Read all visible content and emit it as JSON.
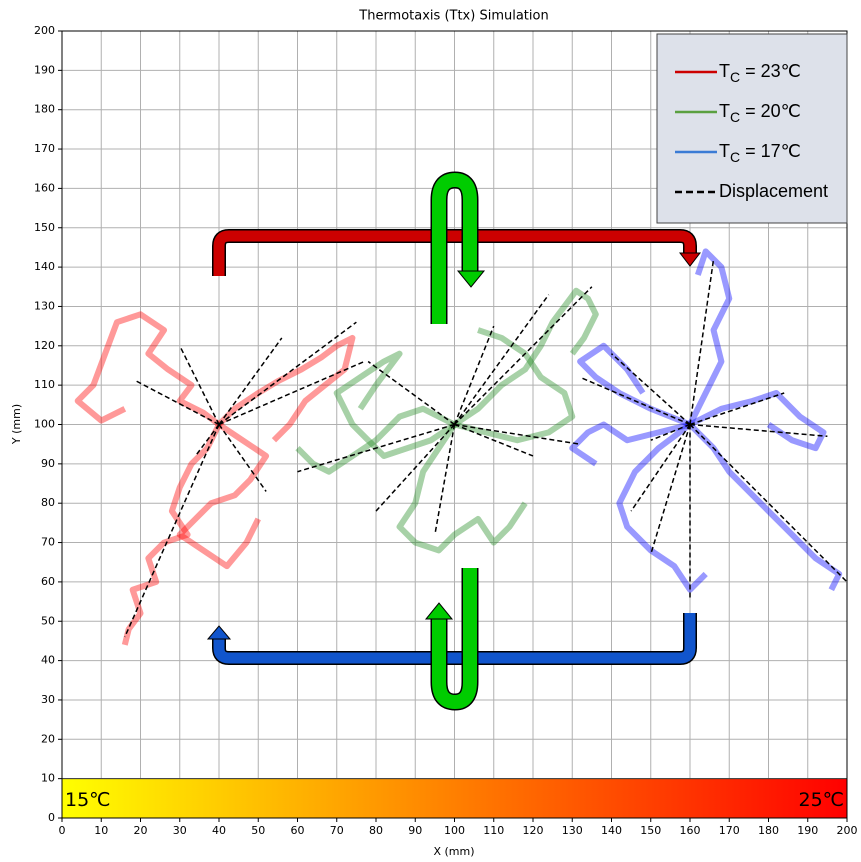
{
  "chart_data": {
    "type": "trajectory",
    "title": "Thermotaxis (Ttx) Simulation",
    "x_label": "X (mm)",
    "y_label": "Y (mm)",
    "xlim": [
      0,
      200
    ],
    "ylim": [
      0,
      200
    ],
    "xticks": [
      0,
      10,
      20,
      30,
      40,
      50,
      60,
      70,
      80,
      90,
      100,
      110,
      120,
      130,
      140,
      150,
      160,
      170,
      180,
      190,
      200
    ],
    "yticks": [
      0,
      10,
      20,
      30,
      40,
      50,
      60,
      70,
      80,
      90,
      100,
      110,
      120,
      130,
      140,
      150,
      160,
      170,
      180,
      190,
      200
    ],
    "grid": true,
    "legend": "upper right",
    "series": [
      {
        "name": "TC = 23℃",
        "color": "#ff0000",
        "legend_color": "#cc0000",
        "trajectories": [
          {
            "x": [
              40,
              36,
              30,
              33,
              27,
              22,
              26,
              20,
              14,
              8,
              4,
              10,
              16
            ],
            "y": [
              100,
              103,
              106,
              110,
              114,
              118,
              124,
              128,
              126,
              110,
              106,
              101,
              104
            ]
          },
          {
            "x": [
              40,
              44,
              50,
              55,
              61,
              66,
              70,
              74,
              72,
              67,
              62,
              58,
              54
            ],
            "y": [
              100,
              104,
              108,
              111,
              114,
              117,
              120,
              122,
              114,
              110,
              106,
              100,
              96
            ]
          },
          {
            "x": [
              40,
              37,
              33,
              30,
              28,
              32,
              26,
              22,
              24,
              18,
              20,
              17,
              16
            ],
            "y": [
              100,
              94,
              90,
              84,
              78,
              72,
              70,
              66,
              60,
              58,
              52,
              48,
              44
            ]
          },
          {
            "x": [
              40,
              46,
              52,
              48,
              44,
              38,
              34,
              30,
              36,
              42,
              47,
              50
            ],
            "y": [
              100,
              96,
              92,
              86,
              82,
              80,
              76,
              72,
              68,
              64,
              70,
              76
            ]
          }
        ]
      },
      {
        "name": "TC = 20℃",
        "color": "#228b22",
        "legend_color": "#5aa040",
        "trajectories": [
          {
            "x": [
              100,
              106,
              112,
              118,
              122,
              125,
              128,
              131,
              134,
              136,
              133,
              130
            ],
            "y": [
              100,
              104,
              110,
              114,
              120,
              126,
              130,
              134,
              132,
              128,
              122,
              118
            ]
          },
          {
            "x": [
              100,
              94,
              88,
              82,
              78,
              74,
              70,
              76,
              82,
              86,
              80,
              76
            ],
            "y": [
              100,
              96,
              94,
              92,
              96,
              100,
              108,
              112,
              116,
              118,
              110,
              104
            ]
          },
          {
            "x": [
              100,
              96,
              92,
              90,
              86,
              90,
              96,
              100,
              106,
              110,
              114,
              118
            ],
            "y": [
              100,
              94,
              88,
              80,
              74,
              70,
              68,
              72,
              76,
              70,
              74,
              80
            ]
          },
          {
            "x": [
              100,
              108,
              116,
              124,
              130,
              128,
              122,
              118,
              112,
              106
            ],
            "y": [
              100,
              98,
              96,
              98,
              102,
              108,
              112,
              118,
              122,
              124
            ]
          },
          {
            "x": [
              100,
              92,
              86,
              80,
              74,
              68,
              64,
              60
            ],
            "y": [
              100,
              104,
              102,
              96,
              92,
              88,
              90,
              94
            ]
          }
        ]
      },
      {
        "name": "TC = 17℃",
        "color": "#0000ff",
        "legend_color": "#3a7bd5",
        "trajectories": [
          {
            "x": [
              160,
              164,
              168,
              166,
              170,
              168,
              164,
              162
            ],
            "y": [
              100,
              108,
              116,
              124,
              132,
              140,
              144,
              138
            ]
          },
          {
            "x": [
              160,
              168,
              176,
              182,
              188,
              194,
              192,
              186,
              180
            ],
            "y": [
              100,
              104,
              106,
              108,
              102,
              98,
              94,
              96,
              100
            ]
          },
          {
            "x": [
              160,
              166,
              170,
              176,
              180,
              186,
              192,
              198,
              196
            ],
            "y": [
              100,
              94,
              88,
              82,
              78,
              72,
              66,
              62,
              58
            ]
          },
          {
            "x": [
              160,
              152,
              146,
              142,
              144,
              150,
              156,
              160,
              164
            ],
            "y": [
              100,
              94,
              88,
              80,
              74,
              68,
              64,
              58,
              62
            ]
          },
          {
            "x": [
              160,
              150,
              142,
              136,
              132,
              138,
              144,
              148
            ],
            "y": [
              100,
              104,
              108,
              112,
              116,
              120,
              114,
              108
            ]
          },
          {
            "x": [
              160,
              152,
              144,
              138,
              134,
              130,
              136
            ],
            "y": [
              100,
              98,
              96,
              100,
              98,
              94,
              90
            ]
          }
        ]
      }
    ],
    "displacement": {
      "name": "Displacement",
      "color": "#000000",
      "segments": [
        {
          "x": [
            40,
            16
          ],
          "y": [
            100,
            46
          ]
        },
        {
          "x": [
            40,
            52
          ],
          "y": [
            100,
            83
          ]
        },
        {
          "x": [
            40,
            30
          ],
          "y": [
            100,
            120
          ]
        },
        {
          "x": [
            40,
            19
          ],
          "y": [
            100,
            111
          ]
        },
        {
          "x": [
            40,
            75
          ],
          "y": [
            100,
            126
          ]
        },
        {
          "x": [
            40,
            77
          ],
          "y": [
            100,
            116
          ]
        },
        {
          "x": [
            40,
            56
          ],
          "y": [
            100,
            122
          ]
        },
        {
          "x": [
            40,
            34
          ],
          "y": [
            100,
            92
          ]
        },
        {
          "x": [
            100,
            124
          ],
          "y": [
            100,
            133
          ]
        },
        {
          "x": [
            100,
            135
          ],
          "y": [
            100,
            135
          ]
        },
        {
          "x": [
            100,
            80
          ],
          "y": [
            100,
            78
          ]
        },
        {
          "x": [
            100,
            60
          ],
          "y": [
            100,
            88
          ]
        },
        {
          "x": [
            100,
            95
          ],
          "y": [
            100,
            72
          ]
        },
        {
          "x": [
            100,
            120
          ],
          "y": [
            100,
            92
          ]
        },
        {
          "x": [
            100,
            132
          ],
          "y": [
            100,
            95
          ]
        },
        {
          "x": [
            100,
            78
          ],
          "y": [
            100,
            116
          ]
        },
        {
          "x": [
            100,
            110
          ],
          "y": [
            100,
            125
          ]
        },
        {
          "x": [
            160,
            166
          ],
          "y": [
            100,
            142
          ]
        },
        {
          "x": [
            160,
            160
          ],
          "y": [
            100,
            56
          ]
        },
        {
          "x": [
            160,
            150
          ],
          "y": [
            100,
            67
          ]
        },
        {
          "x": [
            160,
            145
          ],
          "y": [
            100,
            78
          ]
        },
        {
          "x": [
            160,
            184
          ],
          "y": [
            100,
            108
          ]
        },
        {
          "x": [
            160,
            195
          ],
          "y": [
            100,
            97
          ]
        },
        {
          "x": [
            160,
            200
          ],
          "y": [
            100,
            60
          ]
        },
        {
          "x": [
            160,
            140
          ],
          "y": [
            100,
            118
          ]
        },
        {
          "x": [
            160,
            132
          ],
          "y": [
            100,
            112
          ]
        },
        {
          "x": [
            160,
            150
          ],
          "y": [
            100,
            96
          ]
        }
      ]
    },
    "colorbar": {
      "ylim": [
        0,
        10
      ],
      "colors": [
        "#ffff00",
        "#ff0000"
      ],
      "labels": [
        "15℃",
        "25℃"
      ]
    }
  }
}
